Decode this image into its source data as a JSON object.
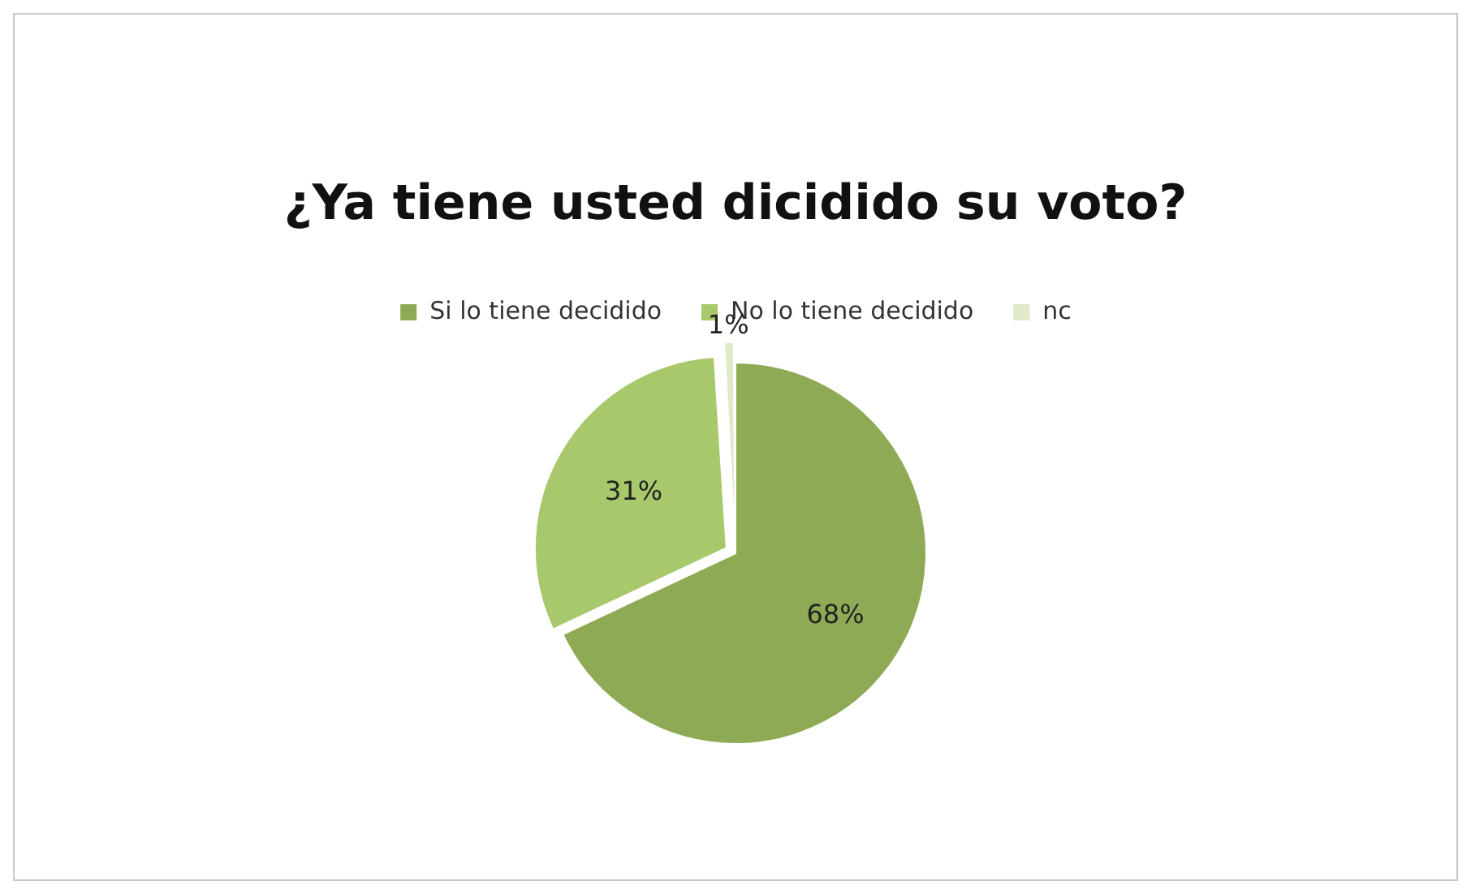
{
  "chart_data": {
    "type": "pie",
    "title": "¿Ya tiene usted dicidido su voto?",
    "categories": [
      "Si lo tiene decidido",
      "No lo tiene decidido",
      "nc"
    ],
    "values": [
      68,
      31,
      1
    ],
    "colors": [
      "#8eaa55",
      "#a8c86c",
      "#dfeac8"
    ],
    "value_labels": [
      "68%",
      "31%",
      "1%"
    ],
    "legend": "top"
  }
}
